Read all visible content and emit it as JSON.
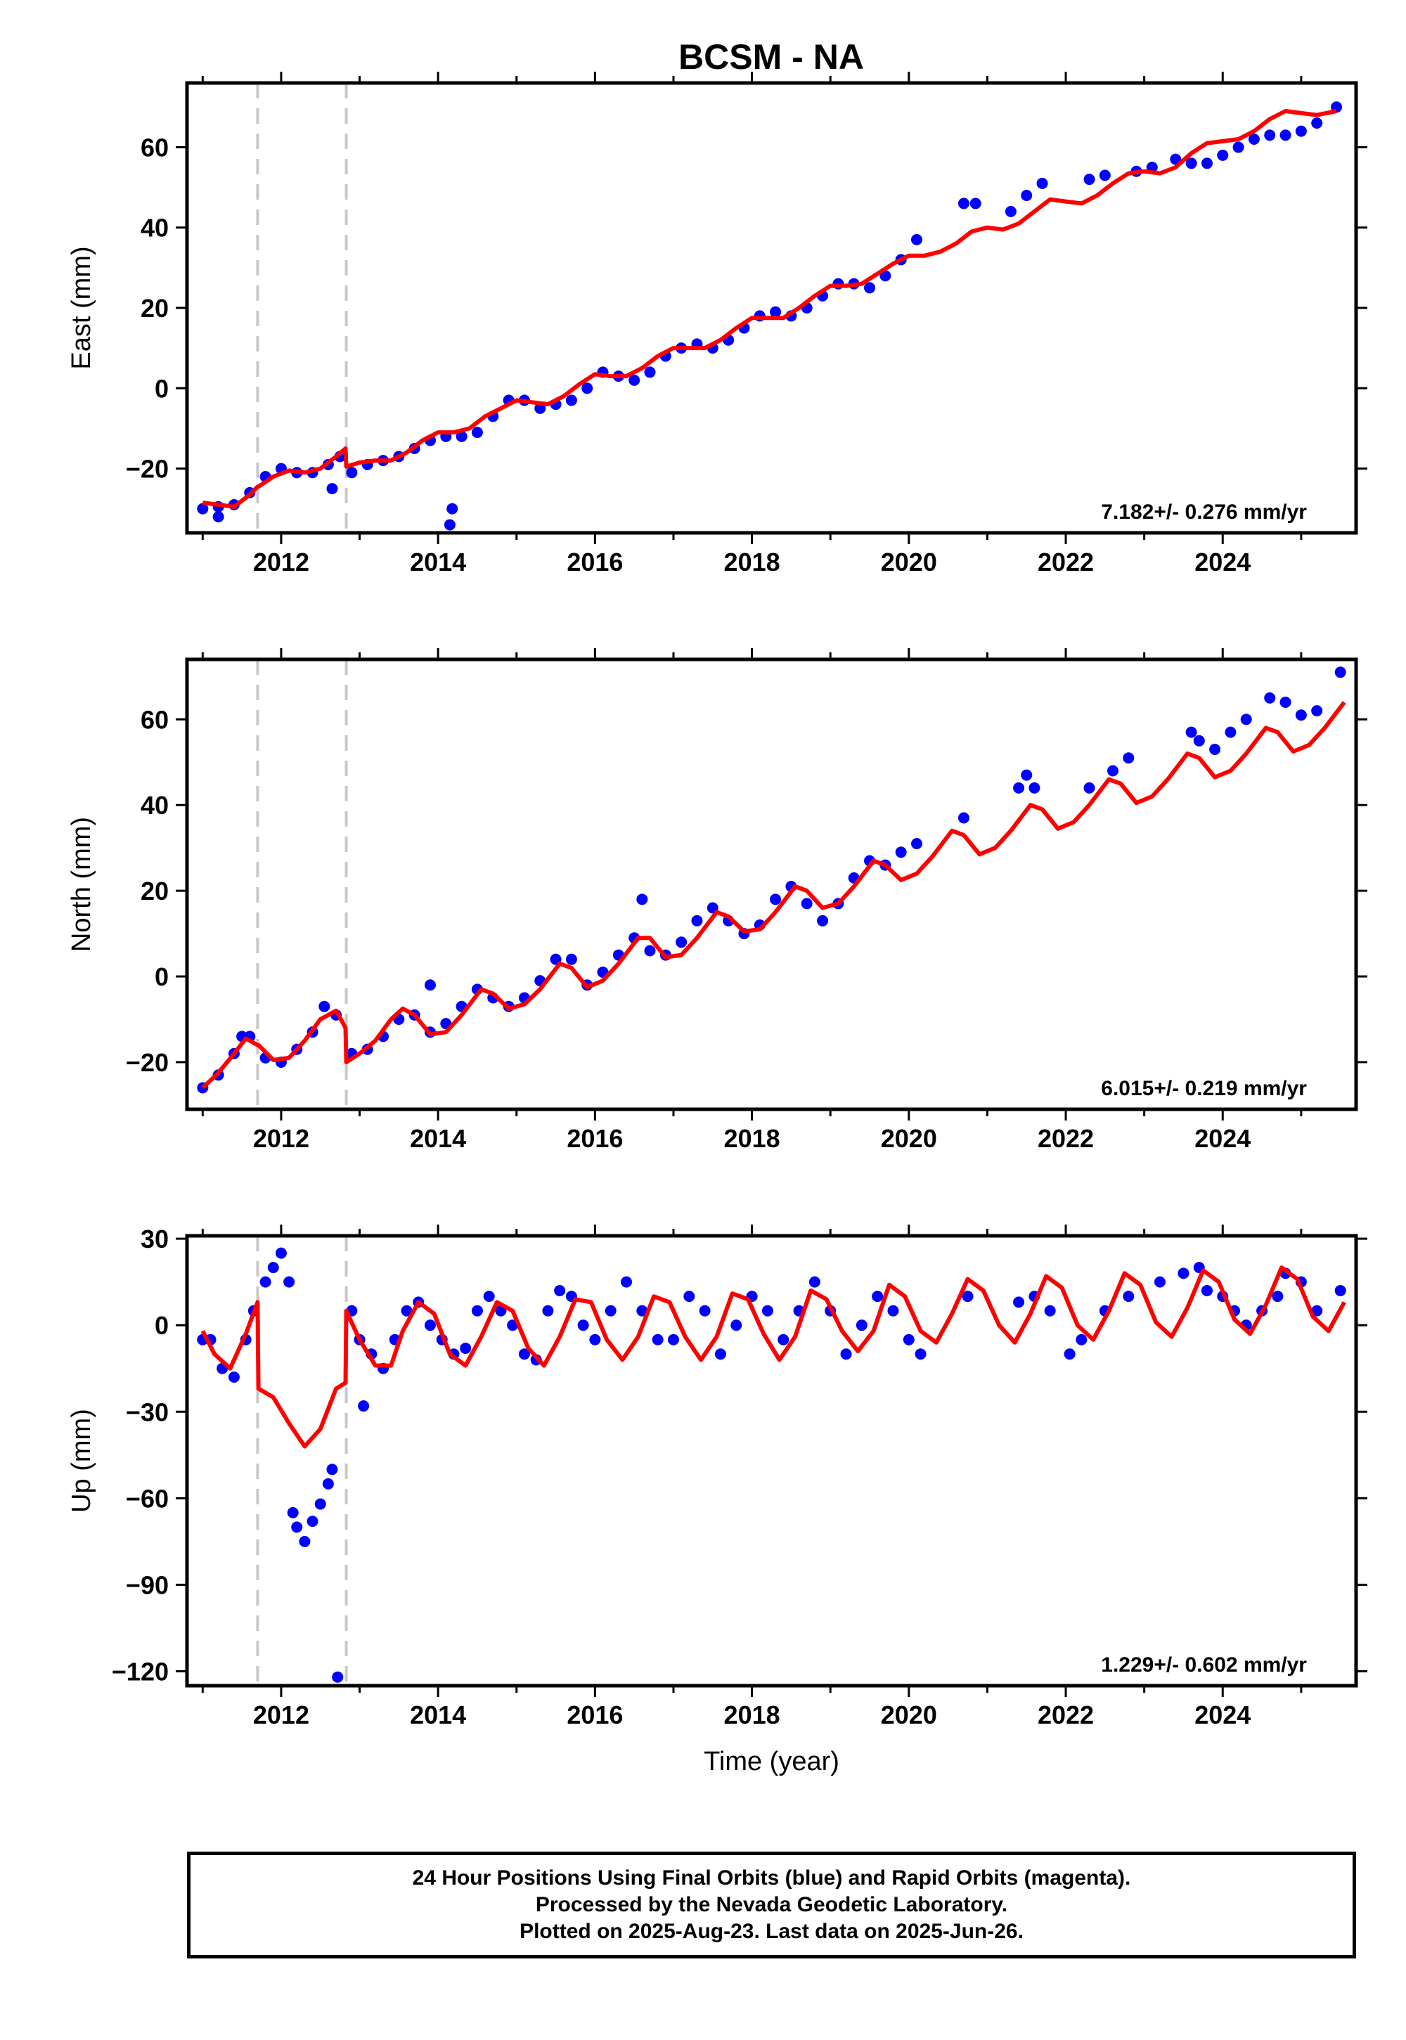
{
  "title": "BCSM - NA",
  "colors": {
    "data_points": "#0000ff",
    "model_line": "#ff0000",
    "break_lines": "#c8c8c8",
    "frame": "#000000"
  },
  "xaxis": {
    "label": "Time (year)",
    "range": [
      2010.8,
      2025.7
    ],
    "major_ticks": [
      2012,
      2014,
      2016,
      2018,
      2020,
      2022,
      2024
    ],
    "minor_tick_step": 1
  },
  "breaks": [
    2011.7,
    2012.83
  ],
  "chart_data": [
    {
      "type": "scatter",
      "component": "east",
      "ylabel": "East (mm)",
      "ylim": [
        -36,
        76
      ],
      "yticks": [
        -20,
        0,
        20,
        40,
        60
      ],
      "rate_label": "7.182+/- 0.276 mm/yr",
      "series": [
        {
          "name": "",
          "kind": "points",
          "x": [
            2011.0,
            2011.2,
            2011.4,
            2011.6,
            2011.8,
            2012.0,
            2012.2,
            2012.4,
            2012.6,
            2012.75,
            2012.9,
            2013.1,
            2013.3,
            2013.5,
            2013.7,
            2013.9,
            2014.1,
            2014.3,
            2014.5,
            2014.7,
            2014.9,
            2015.1,
            2015.3,
            2015.5,
            2015.7,
            2015.9,
            2016.1,
            2016.3,
            2016.5,
            2016.7,
            2016.9,
            2017.1,
            2017.3,
            2017.5,
            2017.7,
            2017.9,
            2018.1,
            2018.3,
            2018.5,
            2018.7,
            2018.9,
            2019.1,
            2019.3,
            2019.5,
            2019.7,
            2019.9,
            2020.1,
            2020.7,
            2020.85,
            2021.3,
            2021.5,
            2021.7,
            2022.3,
            2022.5,
            2022.9,
            2023.1,
            2023.4,
            2023.6,
            2023.8,
            2024.0,
            2024.2,
            2024.4,
            2024.6,
            2024.8,
            2025.0,
            2025.2,
            2025.45,
            2011.2,
            2012.65,
            2014.15,
            2014.18
          ],
          "y": [
            -30,
            -29.5,
            -29,
            -26,
            -22,
            -20,
            -21,
            -21,
            -19,
            -17,
            -21,
            -19,
            -18,
            -17,
            -15,
            -13,
            -12,
            -12,
            -11,
            -7,
            -3,
            -3,
            -5,
            -4,
            -3,
            0,
            4,
            3,
            2,
            4,
            8,
            10,
            11,
            10,
            12,
            15,
            18,
            19,
            18,
            20,
            23,
            26,
            26,
            25,
            28,
            32,
            37,
            46,
            46,
            44,
            48,
            51,
            52,
            53,
            54,
            55,
            57,
            56,
            56,
            58,
            60,
            62,
            63,
            63,
            64,
            66,
            70,
            -32,
            -25,
            -34,
            -30
          ]
        },
        {
          "name": "",
          "kind": "model",
          "x": [
            2011.0,
            2011.2,
            2011.4,
            2011.6,
            2011.7,
            2011.71,
            2011.9,
            2012.1,
            2012.3,
            2012.5,
            2012.7,
            2012.82,
            2012.83,
            2013.0,
            2013.2,
            2013.4,
            2013.6,
            2013.8,
            2014.0,
            2014.2,
            2014.4,
            2014.6,
            2014.8,
            2015.0,
            2015.2,
            2015.4,
            2015.6,
            2015.8,
            2016.0,
            2016.2,
            2016.4,
            2016.6,
            2016.8,
            2017.0,
            2017.2,
            2017.4,
            2017.6,
            2017.8,
            2018.0,
            2018.2,
            2018.4,
            2018.6,
            2018.8,
            2019.0,
            2019.2,
            2019.4,
            2019.6,
            2019.8,
            2020.0,
            2020.2,
            2020.4,
            2020.6,
            2020.8,
            2021.0,
            2021.2,
            2021.4,
            2021.6,
            2021.8,
            2022.0,
            2022.2,
            2022.4,
            2022.6,
            2022.8,
            2023.0,
            2023.2,
            2023.4,
            2023.6,
            2023.8,
            2024.0,
            2024.2,
            2024.4,
            2024.6,
            2024.8,
            2025.0,
            2025.2,
            2025.45
          ],
          "y": [
            -28.5,
            -29,
            -29.5,
            -26.5,
            -24.5,
            -24.5,
            -22,
            -20.5,
            -21,
            -20,
            -17,
            -15,
            -19.5,
            -18.5,
            -18,
            -18,
            -16,
            -13,
            -11,
            -11,
            -10,
            -7,
            -5,
            -3,
            -3.5,
            -4,
            -2,
            1,
            3.5,
            3,
            3,
            5,
            8,
            10,
            10,
            10,
            12,
            15,
            17.5,
            17.5,
            17.5,
            20,
            23,
            25.5,
            25.5,
            26,
            28.5,
            31,
            33,
            33,
            34,
            36,
            39,
            40,
            39.5,
            41,
            44,
            47,
            46.5,
            46,
            48,
            51,
            53.5,
            54,
            53.5,
            55,
            58.5,
            61,
            61.5,
            62,
            64,
            67,
            69,
            68.5,
            68,
            69
          ]
        }
      ]
    },
    {
      "type": "scatter",
      "component": "north",
      "ylabel": "North (mm)",
      "ylim": [
        -31,
        74
      ],
      "yticks": [
        -20,
        0,
        20,
        40,
        60
      ],
      "rate_label": "6.015+/- 0.219 mm/yr",
      "series": [
        {
          "name": "",
          "kind": "points",
          "x": [
            2011.0,
            2011.2,
            2011.4,
            2011.5,
            2011.6,
            2011.8,
            2012.0,
            2012.2,
            2012.4,
            2012.55,
            2012.7,
            2012.9,
            2013.1,
            2013.3,
            2013.5,
            2013.7,
            2013.9,
            2014.1,
            2014.3,
            2014.5,
            2014.7,
            2014.9,
            2015.1,
            2015.3,
            2015.5,
            2015.7,
            2015.9,
            2016.1,
            2016.3,
            2016.5,
            2016.7,
            2016.9,
            2017.1,
            2017.3,
            2017.5,
            2017.7,
            2017.9,
            2018.1,
            2018.3,
            2018.5,
            2018.7,
            2018.9,
            2019.1,
            2019.3,
            2019.5,
            2019.7,
            2019.9,
            2020.1,
            2020.7,
            2021.4,
            2021.5,
            2021.6,
            2022.3,
            2022.6,
            2022.8,
            2023.6,
            2023.7,
            2023.9,
            2024.1,
            2024.3,
            2024.6,
            2024.8,
            2025.0,
            2025.2,
            2025.5,
            2013.9,
            2016.6
          ],
          "y": [
            -26,
            -23,
            -18,
            -14,
            -14,
            -19,
            -20,
            -17,
            -13,
            -7,
            -9,
            -18,
            -17,
            -14,
            -10,
            -9,
            -13,
            -11,
            -7,
            -3,
            -5,
            -7,
            -5,
            -1,
            4,
            4,
            -2,
            1,
            5,
            9,
            6,
            5,
            8,
            13,
            16,
            13,
            10,
            12,
            18,
            21,
            17,
            13,
            17,
            23,
            27,
            26,
            29,
            31,
            37,
            44,
            47,
            44,
            44,
            48,
            51,
            57,
            55,
            53,
            57,
            60,
            65,
            64,
            61,
            62,
            71,
            -2,
            18
          ]
        },
        {
          "name": "",
          "kind": "model",
          "x": [
            2011.0,
            2011.2,
            2011.4,
            2011.55,
            2011.7,
            2011.71,
            2011.9,
            2012.1,
            2012.3,
            2012.5,
            2012.7,
            2012.82,
            2012.83,
            2013.0,
            2013.2,
            2013.4,
            2013.55,
            2013.7,
            2013.9,
            2014.1,
            2014.3,
            2014.55,
            2014.7,
            2014.9,
            2015.1,
            2015.3,
            2015.55,
            2015.7,
            2015.9,
            2016.1,
            2016.3,
            2016.55,
            2016.7,
            2016.9,
            2017.1,
            2017.3,
            2017.55,
            2017.7,
            2017.9,
            2018.1,
            2018.3,
            2018.55,
            2018.7,
            2018.9,
            2019.1,
            2019.3,
            2019.55,
            2019.7,
            2019.9,
            2020.1,
            2020.3,
            2020.55,
            2020.7,
            2020.9,
            2021.1,
            2021.3,
            2021.55,
            2021.7,
            2021.9,
            2022.1,
            2022.3,
            2022.55,
            2022.7,
            2022.9,
            2023.1,
            2023.3,
            2023.55,
            2023.7,
            2023.9,
            2024.1,
            2024.3,
            2024.55,
            2024.7,
            2024.9,
            2025.1,
            2025.3,
            2025.55
          ],
          "y": [
            -26,
            -22.5,
            -18,
            -14.5,
            -16,
            -16,
            -19.5,
            -19,
            -15,
            -10,
            -8,
            -12,
            -20,
            -18,
            -15,
            -10,
            -7.5,
            -9,
            -13.5,
            -13,
            -9,
            -3,
            -4,
            -7.5,
            -6.5,
            -3,
            3,
            2,
            -2.5,
            -1,
            3,
            9,
            9,
            4.5,
            5,
            9,
            15,
            14,
            10.5,
            11,
            15,
            21,
            20,
            16,
            17,
            21,
            27,
            26,
            22.5,
            24,
            28,
            34,
            33,
            28.5,
            30,
            34,
            40,
            39,
            34.5,
            36,
            40,
            46,
            45,
            40.5,
            42,
            46,
            52,
            51,
            46.5,
            48,
            52,
            58,
            57,
            52.5,
            54,
            58,
            64
          ]
        }
      ]
    },
    {
      "type": "scatter",
      "component": "up",
      "ylabel": "Up (mm)",
      "ylim": [
        -125,
        31
      ],
      "yticks": [
        -120,
        -90,
        -60,
        -30,
        0,
        30
      ],
      "rate_label": "1.229+/- 0.602 mm/yr",
      "series": [
        {
          "name": "",
          "kind": "points",
          "x": [
            2011.0,
            2011.1,
            2011.25,
            2011.4,
            2011.55,
            2011.65,
            2011.8,
            2011.9,
            2012.0,
            2012.1,
            2012.15,
            2012.2,
            2012.3,
            2012.4,
            2012.5,
            2012.6,
            2012.65,
            2012.9,
            2013.0,
            2013.15,
            2013.3,
            2013.45,
            2013.6,
            2013.75,
            2013.9,
            2014.05,
            2014.2,
            2014.35,
            2014.5,
            2014.65,
            2014.8,
            2014.95,
            2015.1,
            2015.25,
            2015.4,
            2015.55,
            2015.7,
            2015.85,
            2016.0,
            2016.2,
            2016.4,
            2016.6,
            2016.8,
            2017.0,
            2017.2,
            2017.4,
            2017.6,
            2017.8,
            2018.0,
            2018.2,
            2018.4,
            2018.6,
            2018.8,
            2019.0,
            2019.2,
            2019.4,
            2019.6,
            2019.8,
            2020.0,
            2020.15,
            2020.75,
            2021.4,
            2021.6,
            2021.8,
            2022.05,
            2022.2,
            2022.5,
            2022.8,
            2023.2,
            2023.5,
            2023.7,
            2023.8,
            2024.0,
            2024.15,
            2024.3,
            2024.5,
            2024.7,
            2024.8,
            2025.0,
            2025.2,
            2025.5,
            2012.72,
            2013.05
          ],
          "y": [
            -5,
            -5,
            -15,
            -18,
            -5,
            5,
            15,
            20,
            25,
            15,
            -65,
            -70,
            -75,
            -68,
            -62,
            -55,
            -50,
            5,
            -5,
            -10,
            -15,
            -5,
            5,
            8,
            0,
            -5,
            -10,
            -8,
            5,
            10,
            5,
            0,
            -10,
            -12,
            5,
            12,
            10,
            0,
            -5,
            5,
            15,
            5,
            -5,
            -5,
            10,
            5,
            -10,
            0,
            10,
            5,
            -5,
            5,
            15,
            5,
            -10,
            0,
            10,
            5,
            -5,
            -10,
            10,
            8,
            10,
            5,
            -10,
            -5,
            5,
            10,
            15,
            18,
            20,
            12,
            10,
            5,
            0,
            5,
            10,
            18,
            15,
            5,
            12,
            -122,
            -28
          ]
        },
        {
          "name": "",
          "kind": "model",
          "x": [
            2011.0,
            2011.15,
            2011.35,
            2011.55,
            2011.7,
            2011.71,
            2011.9,
            2012.1,
            2012.3,
            2012.5,
            2012.7,
            2012.82,
            2012.83,
            2013.0,
            2013.2,
            2013.4,
            2013.55,
            2013.75,
            2013.95,
            2014.15,
            2014.35,
            2014.55,
            2014.75,
            2014.95,
            2015.15,
            2015.35,
            2015.55,
            2015.75,
            2015.95,
            2016.15,
            2016.35,
            2016.55,
            2016.75,
            2016.95,
            2017.15,
            2017.35,
            2017.55,
            2017.75,
            2017.95,
            2018.15,
            2018.35,
            2018.55,
            2018.75,
            2018.95,
            2019.15,
            2019.35,
            2019.55,
            2019.75,
            2019.95,
            2020.15,
            2020.35,
            2020.55,
            2020.75,
            2020.95,
            2021.15,
            2021.35,
            2021.55,
            2021.75,
            2021.95,
            2022.15,
            2022.35,
            2022.55,
            2022.75,
            2022.95,
            2023.15,
            2023.35,
            2023.55,
            2023.75,
            2023.95,
            2024.15,
            2024.35,
            2024.55,
            2024.75,
            2024.95,
            2025.15,
            2025.35,
            2025.55
          ],
          "y": [
            -2,
            -10,
            -15,
            -3,
            8,
            -22,
            -25,
            -34,
            -42,
            -36,
            -22,
            -20,
            5,
            -5,
            -14,
            -14,
            -2,
            8,
            4,
            -10,
            -14,
            -4,
            8,
            5,
            -8,
            -14,
            -4,
            9,
            8,
            -5,
            -12,
            -4,
            10,
            8,
            -4,
            -12,
            -4,
            11,
            9,
            -3,
            -12,
            -4,
            12,
            9,
            -2,
            -9,
            -2,
            14,
            10,
            -2,
            -6,
            4,
            16,
            12,
            0,
            -6,
            4,
            17,
            13,
            0,
            -5,
            5,
            18,
            14,
            1,
            -4,
            6,
            19,
            15,
            2,
            -3,
            7,
            20,
            16,
            3,
            -2,
            8
          ]
        }
      ]
    }
  ],
  "footer": {
    "line1": "24 Hour Positions Using Final Orbits (blue) and Rapid Orbits (magenta).",
    "line2": "Processed by the Nevada Geodetic Laboratory.",
    "line3": "Plotted on 2025-Aug-23. Last data on 2025-Jun-26."
  }
}
